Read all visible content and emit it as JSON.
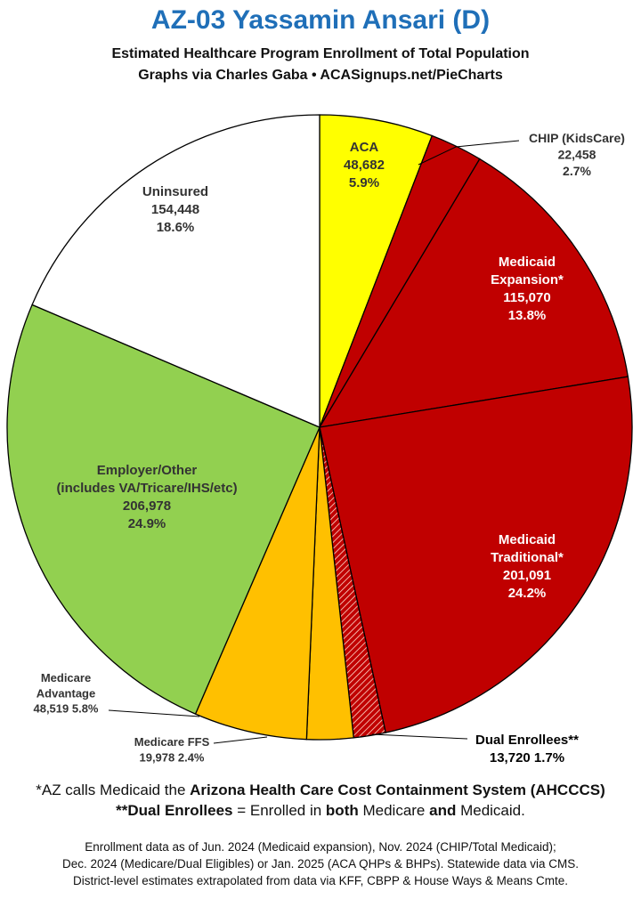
{
  "title": "AZ-03 Yassamin Ansari (D)",
  "subtitle": "Estimated Healthcare Program Enrollment of Total Population",
  "credit": "Graphs via Charles Gaba  •  ACASignups.net/PieCharts",
  "footnotes": {
    "line1_prefix": "*AZ calls Medicaid the ",
    "line1_bold": "Arizona Health Care Cost Containment System (AHCCCS)",
    "line2_bold1": "**Dual Enrollees",
    "line2_mid": " = Enrolled in ",
    "line2_bold2": "both",
    "line2_mid2": " Medicare ",
    "line2_bold3": "and",
    "line2_end": " Medicaid."
  },
  "source_notes": [
    "Enrollment data as of Jun. 2024 (Medicaid expansion), Nov. 2024 (CHIP/Total Medicaid);",
    "Dec. 2024 (Medicare/Dual Eligibles) or Jan. 2025 (ACA QHPs & BHPs). Statewide data via CMS.",
    "District-level estimates extrapolated from data via KFF, CBPP & House Ways & Means Cmte."
  ],
  "colors": {
    "title": "#1f6fb8",
    "aca": "#ffff00",
    "medicaid": "#c00000",
    "medicare": "#ffc000",
    "employer": "#92d050",
    "uninsured": "#ffffff"
  },
  "chart_data": {
    "type": "pie",
    "start": "12 o'clock, clockwise",
    "slices": [
      {
        "label": "ACA",
        "value": 48682,
        "value_label": "48,682",
        "percent": "5.9%",
        "color": "#ffff00",
        "label_position": "inside",
        "label_color": "#333333"
      },
      {
        "label": "CHIP (KidsCare)",
        "value": 22458,
        "value_label": "22,458",
        "percent": "2.7%",
        "color": "#c00000",
        "label_position": "outside",
        "label_color": "#333333"
      },
      {
        "label": "Medicaid Expansion*",
        "value": 115070,
        "value_label": "115,070",
        "percent": "13.8%",
        "color": "#c00000",
        "label_position": "inside",
        "label_color": "#ffffff"
      },
      {
        "label": "Medicaid Traditional*",
        "value": 201091,
        "value_label": "201,091",
        "percent": "24.2%",
        "color": "#c00000",
        "label_position": "inside",
        "label_color": "#ffffff"
      },
      {
        "label": "Dual Enrollees**",
        "value": 13720,
        "value_label": "13,720",
        "percent": "1.7%",
        "color": "#c00000",
        "pattern": "hatched",
        "label_position": "outside",
        "label_color": "#000000"
      },
      {
        "label": "Medicare FFS",
        "value": 19978,
        "value_label": "19,978",
        "percent": "2.4%",
        "color": "#ffc000",
        "label_position": "outside",
        "label_color": "#333333"
      },
      {
        "label": "Medicare Advantage",
        "value": 48519,
        "value_label": "48,519",
        "percent": "5.8%",
        "color": "#ffc000",
        "label_position": "outside",
        "label_color": "#333333"
      },
      {
        "label": "Employer/Other (includes VA/Tricare/IHS/etc)",
        "value": 206978,
        "value_label": "206,978",
        "percent": "24.9%",
        "color": "#92d050",
        "label_position": "inside",
        "label_color": "#333333"
      },
      {
        "label": "Uninsured",
        "value": 154448,
        "value_label": "154,448",
        "percent": "18.6%",
        "color": "#ffffff",
        "label_position": "inside",
        "label_color": "#333333"
      }
    ]
  }
}
